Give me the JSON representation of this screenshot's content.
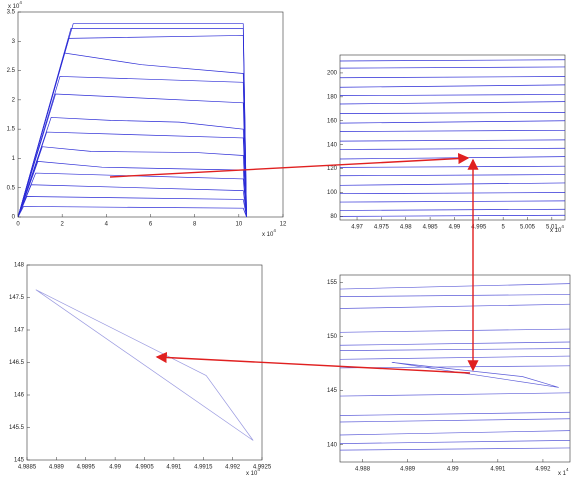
{
  "chart_data": [
    {
      "type": "line",
      "xlim": [
        0,
        12
      ],
      "ylim": [
        0,
        3.5
      ],
      "xticks": [
        0,
        2,
        4,
        6,
        8,
        10,
        12
      ],
      "yticks": [
        0,
        0.5,
        1,
        1.5,
        2,
        2.5,
        3,
        3.5
      ],
      "x_multiplier": {
        "base": "x 10",
        "exponent": "4"
      },
      "y_multiplier": {
        "base": "x 10",
        "exponent": "4"
      },
      "series": [
        {
          "color": "#2b2bd6",
          "x": [
            0,
            2.5,
            10.2,
            10.35
          ],
          "values": [
            0,
            3.3,
            3.3,
            0
          ]
        },
        {
          "color": "#2b2bd6",
          "x": [
            0,
            2.4,
            10.2,
            10.35
          ],
          "values": [
            0,
            3.22,
            3.22,
            0
          ]
        },
        {
          "color": "#2b2bd6",
          "x": [
            0,
            2.3,
            10.2,
            10.35
          ],
          "values": [
            0,
            3.05,
            3.1,
            0
          ]
        },
        {
          "color": "#2b2bd6",
          "x": [
            0,
            2.1,
            5.6,
            10.2,
            10.35
          ],
          "values": [
            0,
            2.8,
            2.6,
            2.45,
            0
          ]
        },
        {
          "color": "#2b2bd6",
          "x": [
            0,
            1.9,
            10.2,
            10.35
          ],
          "values": [
            0,
            2.4,
            2.3,
            0
          ]
        },
        {
          "color": "#2b2bd6",
          "x": [
            0,
            1.7,
            10.2,
            10.35
          ],
          "values": [
            0,
            2.1,
            1.95,
            0
          ]
        },
        {
          "color": "#2b2bd6",
          "x": [
            0,
            1.5,
            4.2,
            7.3,
            10.2,
            10.35
          ],
          "values": [
            0,
            1.7,
            1.65,
            1.62,
            1.5,
            0
          ]
        },
        {
          "color": "#2b2bd6",
          "x": [
            0,
            1.3,
            10.2,
            10.35
          ],
          "values": [
            0,
            1.45,
            1.35,
            0
          ]
        },
        {
          "color": "#2b2bd6",
          "x": [
            0,
            1.1,
            3.3,
            8.1,
            10.2,
            10.35
          ],
          "values": [
            0,
            1.2,
            1.12,
            1.1,
            1.05,
            0
          ]
        },
        {
          "color": "#2b2bd6",
          "x": [
            0,
            0.9,
            3.8,
            10.2,
            10.35
          ],
          "values": [
            0,
            0.95,
            0.85,
            0.8,
            0
          ]
        },
        {
          "color": "#2b2bd6",
          "x": [
            0,
            0.8,
            10.2,
            10.35
          ],
          "values": [
            0,
            0.75,
            0.65,
            0
          ]
        },
        {
          "color": "#2b2bd6",
          "x": [
            0,
            0.6,
            10.2,
            10.35
          ],
          "values": [
            0,
            0.55,
            0.45,
            0
          ]
        },
        {
          "color": "#2b2bd6",
          "x": [
            0,
            0.4,
            10.2,
            10.35
          ],
          "values": [
            0,
            0.35,
            0.3,
            0
          ]
        },
        {
          "color": "#2b2bd6",
          "x": [
            0,
            0.25,
            10.2,
            10.35
          ],
          "values": [
            0,
            0.18,
            0.15,
            0
          ]
        }
      ]
    },
    {
      "type": "line",
      "xlim": [
        4.9665,
        5.0127
      ],
      "ylim": [
        77,
        215
      ],
      "xticks": [
        4.97,
        4.975,
        4.98,
        4.985,
        4.99,
        4.995,
        5,
        5.005,
        5.01
      ],
      "yticks": [
        80,
        100,
        120,
        140,
        160,
        180,
        200
      ],
      "x_multiplier": {
        "base": "x 10",
        "exponent": "4"
      },
      "series": [
        {
          "color": "#2b2bd6",
          "x": [
            4.9665,
            5.0127
          ],
          "values": [
            210,
            211
          ]
        },
        {
          "color": "#2b2bd6",
          "x": [
            4.9665,
            5.0127
          ],
          "values": [
            204,
            205
          ]
        },
        {
          "color": "#2b2bd6",
          "x": [
            4.9665,
            5.0127
          ],
          "values": [
            196,
            197
          ]
        },
        {
          "color": "#2b2bd6",
          "x": [
            4.9665,
            5.0127
          ],
          "values": [
            188,
            190
          ]
        },
        {
          "color": "#2b2bd6",
          "x": [
            4.9665,
            5.0127
          ],
          "values": [
            181,
            182
          ]
        },
        {
          "color": "#2b2bd6",
          "x": [
            4.9665,
            5.0127
          ],
          "values": [
            174,
            176
          ]
        },
        {
          "color": "#2b2bd6",
          "x": [
            4.9665,
            5.0127
          ],
          "values": [
            166,
            167
          ]
        },
        {
          "color": "#2b2bd6",
          "x": [
            4.9665,
            5.0127
          ],
          "values": [
            158,
            160
          ]
        },
        {
          "color": "#2b2bd6",
          "x": [
            4.9665,
            5.0127
          ],
          "values": [
            151,
            152
          ]
        },
        {
          "color": "#2b2bd6",
          "x": [
            4.9665,
            5.0127
          ],
          "values": [
            143,
            144
          ]
        },
        {
          "color": "#2b2bd6",
          "x": [
            4.9665,
            5.0127
          ],
          "values": [
            136,
            137
          ]
        },
        {
          "color": "#2b2bd6",
          "x": [
            4.9665,
            5.0127
          ],
          "values": [
            128,
            130
          ]
        },
        {
          "color": "#2b2bd6",
          "x": [
            4.9665,
            5.0127
          ],
          "values": [
            121,
            122
          ]
        },
        {
          "color": "#2b2bd6",
          "x": [
            4.9665,
            5.0127
          ],
          "values": [
            114,
            115
          ]
        },
        {
          "color": "#2b2bd6",
          "x": [
            4.9665,
            5.0127
          ],
          "values": [
            106,
            108
          ]
        },
        {
          "color": "#2b2bd6",
          "x": [
            4.9665,
            5.0127
          ],
          "values": [
            99,
            100
          ]
        },
        {
          "color": "#2b2bd6",
          "x": [
            4.9665,
            5.0127
          ],
          "values": [
            92,
            93
          ]
        },
        {
          "color": "#2b2bd6",
          "x": [
            4.9665,
            5.0127
          ],
          "values": [
            85,
            86
          ]
        },
        {
          "color": "#2b2bd6",
          "x": [
            4.9665,
            5.0127
          ],
          "values": [
            80,
            81
          ]
        }
      ]
    },
    {
      "type": "line",
      "xlim": [
        4.9885,
        4.9925
      ],
      "ylim": [
        145,
        148
      ],
      "xticks": [
        4.9885,
        4.989,
        4.9895,
        4.99,
        4.9905,
        4.991,
        4.9915,
        4.992,
        4.9925
      ],
      "yticks": [
        145,
        145.5,
        146,
        146.5,
        147,
        147.5,
        148
      ],
      "x_multiplier": {
        "base": "x 10",
        "exponent": "4"
      },
      "series": [
        {
          "color": "#9a9ae0",
          "x": [
            4.98865,
            4.99155,
            4.99235,
            4.98865
          ],
          "values": [
            147.62,
            146.3,
            145.3,
            147.62
          ]
        }
      ]
    },
    {
      "type": "line",
      "xlim": [
        4.9875,
        4.9926
      ],
      "ylim": [
        138.4,
        155.7
      ],
      "xticks": [
        4.988,
        4.989,
        4.99,
        4.991,
        4.992
      ],
      "yticks": [
        140,
        145,
        150,
        155
      ],
      "x_multiplier": {
        "base": "x 1",
        "exponent": "4"
      },
      "series": [
        {
          "color": "#5c5cd8",
          "x": [
            4.9875,
            4.9926
          ],
          "values": [
            154.4,
            154.9
          ]
        },
        {
          "color": "#5c5cd8",
          "x": [
            4.9875,
            4.9926
          ],
          "values": [
            153.7,
            153.9
          ]
        },
        {
          "color": "#5c5cd8",
          "x": [
            4.9875,
            4.9926
          ],
          "values": [
            152.6,
            153.0
          ]
        },
        {
          "color": "#5c5cd8",
          "x": [
            4.9875,
            4.9926
          ],
          "values": [
            150.4,
            150.7
          ]
        },
        {
          "color": "#5c5cd8",
          "x": [
            4.9875,
            4.9926
          ],
          "values": [
            149.2,
            149.5
          ]
        },
        {
          "color": "#5c5cd8",
          "x": [
            4.9875,
            4.9926
          ],
          "values": [
            148.7,
            148.9
          ]
        },
        {
          "color": "#5c5cd8",
          "x": [
            4.9875,
            4.9926
          ],
          "values": [
            147.9,
            148.2
          ]
        },
        {
          "color": "#5c5cd8",
          "x": [
            4.9875,
            4.9926
          ],
          "values": [
            147.1,
            147.3
          ]
        },
        {
          "color": "#5c5cd8",
          "x": [
            4.9875,
            4.9926
          ],
          "values": [
            144.5,
            144.8
          ]
        },
        {
          "color": "#5c5cd8",
          "x": [
            4.9875,
            4.9926
          ],
          "values": [
            142.7,
            143.0
          ]
        },
        {
          "color": "#5c5cd8",
          "x": [
            4.9875,
            4.9926
          ],
          "values": [
            142.1,
            142.4
          ]
        },
        {
          "color": "#5c5cd8",
          "x": [
            4.9875,
            4.9926
          ],
          "values": [
            140.9,
            141.3
          ]
        },
        {
          "color": "#5c5cd8",
          "x": [
            4.9875,
            4.9926
          ],
          "values": [
            140.1,
            140.4
          ]
        },
        {
          "color": "#5c5cd8",
          "x": [
            4.9875,
            4.9926
          ],
          "values": [
            139.5,
            139.7
          ]
        },
        {
          "color": "#5c5cd8",
          "x": [
            4.98865,
            4.99155,
            4.99235,
            4.98865
          ],
          "values": [
            147.62,
            146.3,
            145.3,
            147.62
          ]
        }
      ]
    }
  ]
}
